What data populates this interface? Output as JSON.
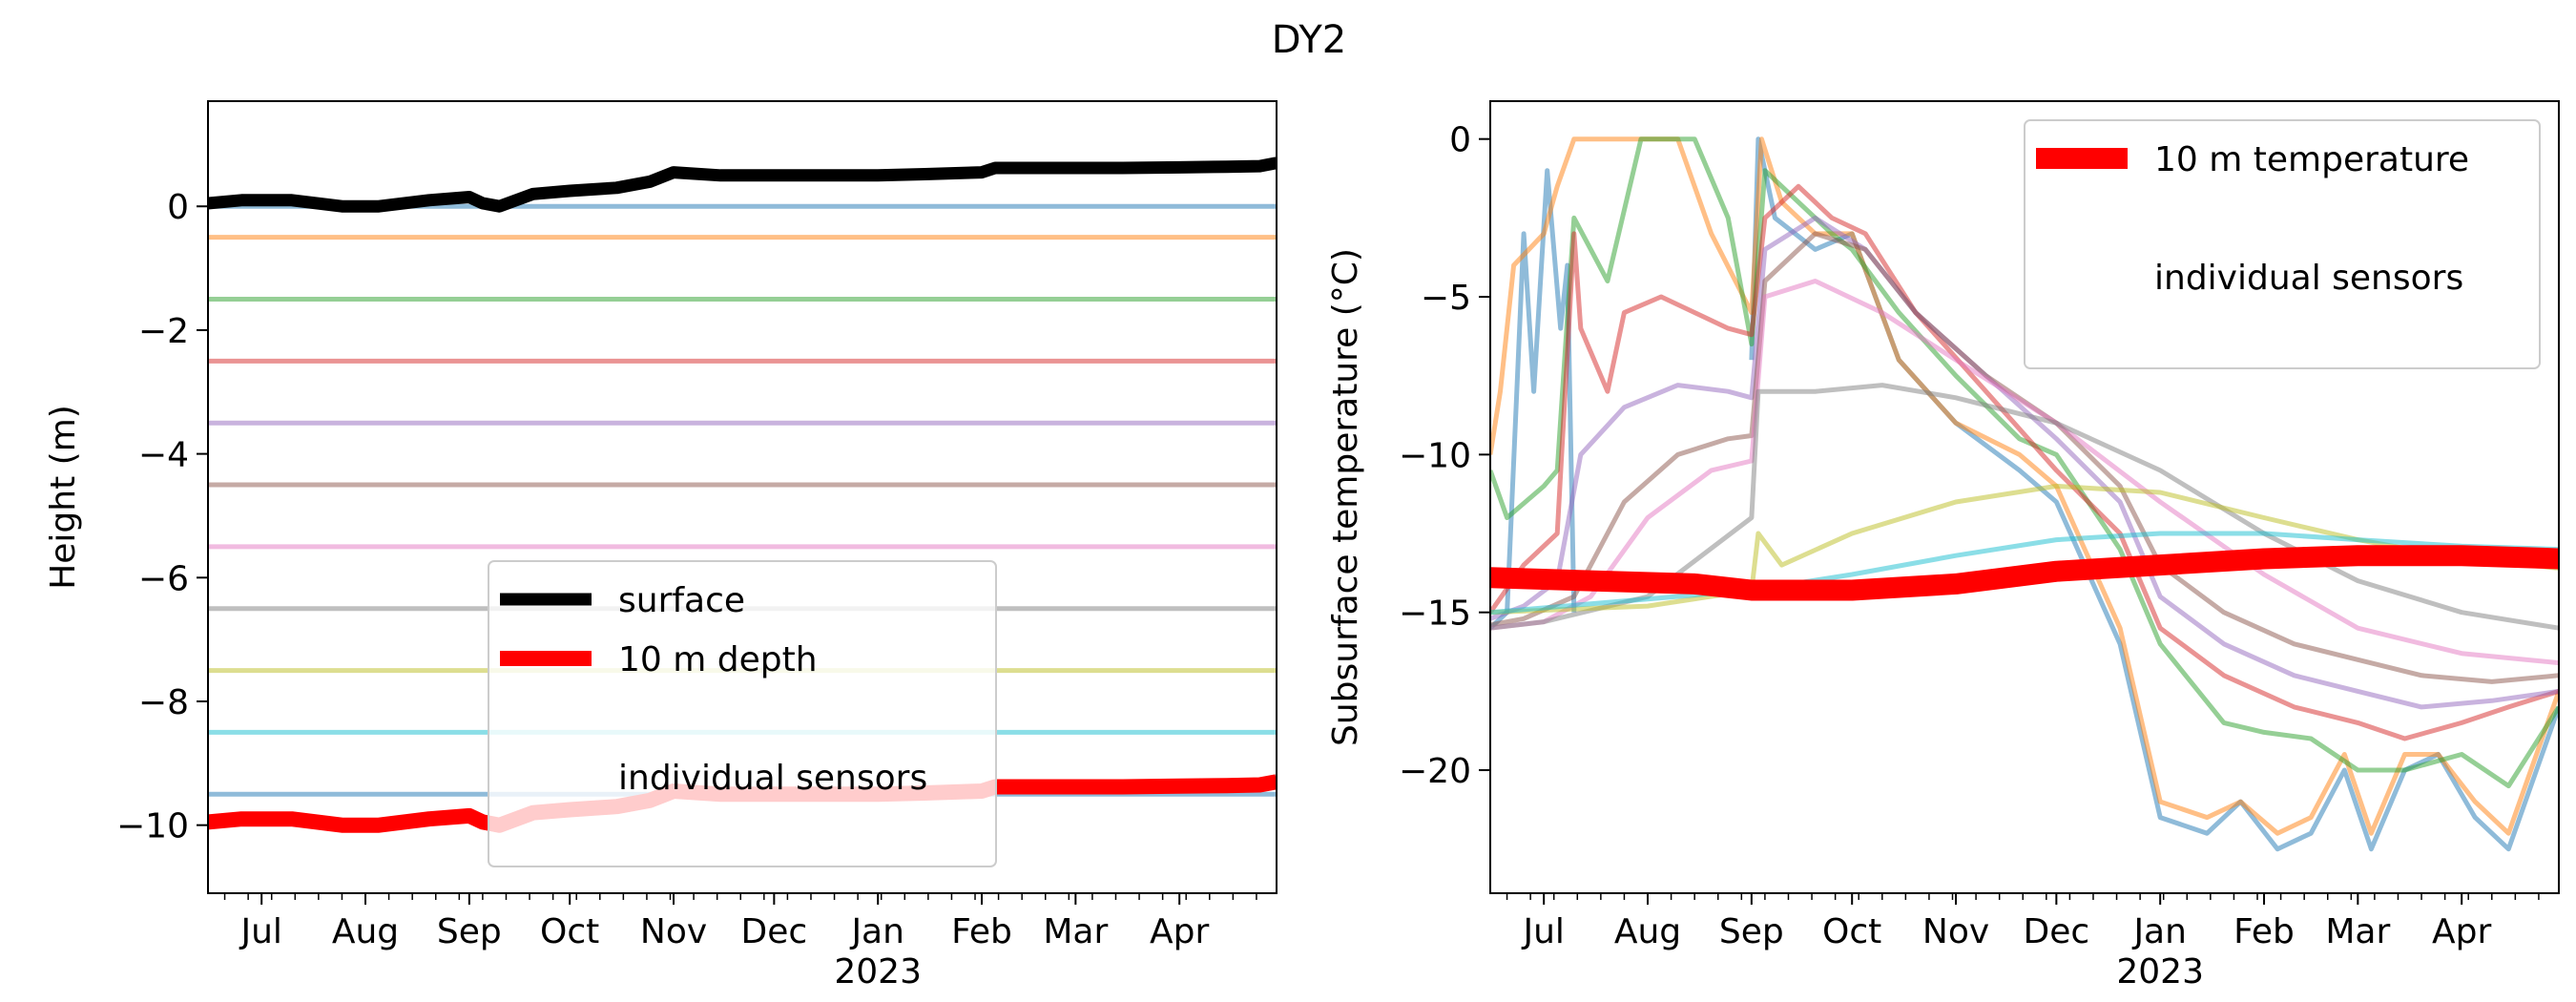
{
  "figure": {
    "title": "DY2"
  },
  "chart_data": [
    {
      "type": "line",
      "title": "",
      "xlabel": "",
      "ylabel": "Height (m)",
      "xlim": [
        "2022-06-15",
        "2023-04-30"
      ],
      "ylim": [
        -11.1,
        1.7
      ],
      "yticks": [
        0,
        -2,
        -4,
        -6,
        -8,
        -10
      ],
      "ytick_labels": [
        "0",
        "−2",
        "−4",
        "−6",
        "−8",
        "−10"
      ],
      "xticks": [
        {
          "date": "2022-07-01",
          "label": "Jul"
        },
        {
          "date": "2022-08-01",
          "label": "Aug"
        },
        {
          "date": "2022-09-01",
          "label": "Sep"
        },
        {
          "date": "2022-10-01",
          "label": "Oct"
        },
        {
          "date": "2022-11-01",
          "label": "Nov"
        },
        {
          "date": "2022-12-01",
          "label": "Dec"
        },
        {
          "date": "2023-01-01",
          "label": "Jan"
        },
        {
          "date": "2023-02-01",
          "label": "Feb"
        },
        {
          "date": "2023-03-01",
          "label": "Mar"
        },
        {
          "date": "2023-04-01",
          "label": "Apr"
        }
      ],
      "year_label": "2023",
      "grid": false,
      "legend": {
        "placement": "lower center",
        "entries": [
          {
            "label": "surface",
            "color": "#000000"
          },
          {
            "label": "10 m depth",
            "color": "#ff0000"
          },
          {
            "label": "individual sensors",
            "color": ""
          }
        ]
      },
      "series": [
        {
          "name": "surface",
          "color": "#000000",
          "x": [
            "2022-06-15",
            "2022-06-25",
            "2022-07-10",
            "2022-07-25",
            "2022-08-05",
            "2022-08-20",
            "2022-09-01",
            "2022-09-05",
            "2022-09-10",
            "2022-09-20",
            "2022-10-01",
            "2022-10-15",
            "2022-10-25",
            "2022-11-01",
            "2022-11-15",
            "2022-12-01",
            "2022-12-15",
            "2023-01-01",
            "2023-01-15",
            "2023-02-01",
            "2023-02-05",
            "2023-02-15",
            "2023-03-01",
            "2023-03-15",
            "2023-04-01",
            "2023-04-15",
            "2023-04-25",
            "2023-04-30"
          ],
          "y": [
            0.05,
            0.1,
            0.1,
            0.0,
            0.0,
            0.1,
            0.15,
            0.05,
            0.0,
            0.2,
            0.25,
            0.3,
            0.4,
            0.55,
            0.5,
            0.5,
            0.5,
            0.5,
            0.52,
            0.55,
            0.62,
            0.62,
            0.62,
            0.62,
            0.63,
            0.64,
            0.65,
            0.7
          ]
        },
        {
          "name": "10 m depth",
          "color": "#ff0000",
          "x": [
            "2022-06-15",
            "2022-06-25",
            "2022-07-10",
            "2022-07-25",
            "2022-08-05",
            "2022-08-20",
            "2022-09-01",
            "2022-09-05",
            "2022-09-10",
            "2022-09-20",
            "2022-10-01",
            "2022-10-15",
            "2022-10-25",
            "2022-11-01",
            "2022-11-15",
            "2022-12-01",
            "2022-12-15",
            "2023-01-01",
            "2023-01-15",
            "2023-02-01",
            "2023-02-05",
            "2023-02-15",
            "2023-03-01",
            "2023-03-15",
            "2023-04-01",
            "2023-04-15",
            "2023-04-25",
            "2023-04-30"
          ],
          "y": [
            -9.95,
            -9.9,
            -9.9,
            -10.0,
            -10.0,
            -9.9,
            -9.85,
            -9.95,
            -10.0,
            -9.8,
            -9.75,
            -9.7,
            -9.6,
            -9.45,
            -9.5,
            -9.5,
            -9.5,
            -9.5,
            -9.48,
            -9.45,
            -9.38,
            -9.38,
            -9.38,
            -9.38,
            -9.37,
            -9.36,
            -9.35,
            -9.3
          ]
        },
        {
          "name": "",
          "color": "#1f77b4",
          "constant": 0.0
        },
        {
          "name": "",
          "color": "#ff7f0e",
          "constant": -0.5
        },
        {
          "name": "",
          "color": "#2ca02c",
          "constant": -1.5
        },
        {
          "name": "",
          "color": "#d62728",
          "constant": -2.5
        },
        {
          "name": "",
          "color": "#9467bd",
          "constant": -3.5
        },
        {
          "name": "",
          "color": "#8c564b",
          "constant": -4.5
        },
        {
          "name": "",
          "color": "#e377c2",
          "constant": -5.5
        },
        {
          "name": "",
          "color": "#7f7f7f",
          "constant": -6.5
        },
        {
          "name": "",
          "color": "#bcbd22",
          "constant": -7.5
        },
        {
          "name": "",
          "color": "#17becf",
          "constant": -8.5
        },
        {
          "name": "",
          "color": "#1f77b4",
          "constant": -9.5
        }
      ]
    },
    {
      "type": "line",
      "title": "",
      "xlabel": "",
      "ylabel": "Subsurface temperature (°C)",
      "xlim": [
        "2022-06-15",
        "2023-04-30"
      ],
      "ylim": [
        -23.9,
        1.2
      ],
      "yticks": [
        0,
        -5,
        -10,
        -15,
        -20
      ],
      "ytick_labels": [
        "0",
        "−5",
        "−10",
        "−15",
        "−20"
      ],
      "xticks": [
        {
          "date": "2022-07-01",
          "label": "Jul"
        },
        {
          "date": "2022-08-01",
          "label": "Aug"
        },
        {
          "date": "2022-09-01",
          "label": "Sep"
        },
        {
          "date": "2022-10-01",
          "label": "Oct"
        },
        {
          "date": "2022-11-01",
          "label": "Nov"
        },
        {
          "date": "2022-12-01",
          "label": "Dec"
        },
        {
          "date": "2023-01-01",
          "label": "Jan"
        },
        {
          "date": "2023-02-01",
          "label": "Feb"
        },
        {
          "date": "2023-03-01",
          "label": "Mar"
        },
        {
          "date": "2023-04-01",
          "label": "Apr"
        }
      ],
      "year_label": "2023",
      "grid": false,
      "legend": {
        "placement": "upper right",
        "entries": [
          {
            "label": "10 m temperature",
            "color": "#ff0000"
          },
          {
            "label": "individual sensors",
            "color": ""
          }
        ]
      },
      "series": [
        {
          "name": "10 m temperature",
          "color": "#ff0000",
          "x": [
            "2022-06-15",
            "2022-07-15",
            "2022-08-15",
            "2022-09-01",
            "2022-10-01",
            "2022-11-01",
            "2022-12-01",
            "2023-01-01",
            "2023-02-01",
            "2023-03-01",
            "2023-04-01",
            "2023-04-30"
          ],
          "y": [
            -13.9,
            -14.0,
            -14.1,
            -14.3,
            -14.3,
            -14.1,
            -13.7,
            -13.5,
            -13.3,
            -13.2,
            -13.2,
            -13.3
          ]
        },
        {
          "name": "",
          "color": "#1f77b4",
          "x": [
            "2022-06-15",
            "2022-06-20",
            "2022-06-25",
            "2022-06-28",
            "2022-07-02",
            "2022-07-06",
            "2022-07-08",
            "2022-07-10",
            "2022-07-20",
            "2022-08-20",
            "2022-09-01",
            "2022-09-03",
            "2022-09-08",
            "2022-09-20",
            "2022-10-01",
            "2022-10-15",
            "2022-11-01",
            "2022-11-20",
            "2022-12-01",
            "2022-12-20",
            "2023-01-01",
            "2023-01-15",
            "2023-01-25",
            "2023-02-05",
            "2023-02-15",
            "2023-02-25",
            "2023-03-05",
            "2023-03-15",
            "2023-03-25",
            "2023-04-05",
            "2023-04-15",
            "2023-04-30"
          ],
          "y": [
            -15.5,
            -15.0,
            -3.0,
            -8.0,
            -1.0,
            -6.0,
            -4.0,
            -15.0,
            null,
            null,
            -7.0,
            0.0,
            -2.5,
            -3.5,
            -3.0,
            -7.0,
            -9.0,
            -10.5,
            -11.5,
            -16.0,
            -21.5,
            -22.0,
            -21.0,
            -22.5,
            -22.0,
            -20.0,
            -22.5,
            -20.0,
            -19.5,
            -21.5,
            -22.5,
            -18.0
          ]
        },
        {
          "name": "",
          "color": "#ff7f0e",
          "x": [
            "2022-06-15",
            "2022-06-18",
            "2022-06-22",
            "2022-07-01",
            "2022-07-05",
            "2022-07-10",
            "2022-07-20",
            "2022-08-10",
            "2022-08-20",
            "2022-09-01",
            "2022-09-04",
            "2022-09-10",
            "2022-09-20",
            "2022-10-01",
            "2022-10-15",
            "2022-11-01",
            "2022-11-20",
            "2022-12-01",
            "2022-12-20",
            "2023-01-01",
            "2023-01-15",
            "2023-01-25",
            "2023-02-05",
            "2023-02-15",
            "2023-02-25",
            "2023-03-05",
            "2023-03-15",
            "2023-03-25",
            "2023-04-05",
            "2023-04-15",
            "2023-04-30"
          ],
          "y": [
            -10.0,
            -8.0,
            -4.0,
            -3.0,
            -1.5,
            0.0,
            0.0,
            0.0,
            -3.0,
            -5.5,
            0.0,
            -2.0,
            -3.0,
            -3.0,
            -7.0,
            -9.0,
            -10.0,
            -11.0,
            -15.5,
            -21.0,
            -21.5,
            -21.0,
            -22.0,
            -21.5,
            -19.5,
            -22.0,
            -19.5,
            -19.5,
            -21.0,
            -22.0,
            -17.5
          ]
        },
        {
          "name": "",
          "color": "#2ca02c",
          "x": [
            "2022-06-15",
            "2022-06-20",
            "2022-07-01",
            "2022-07-05",
            "2022-07-10",
            "2022-07-20",
            "2022-07-30",
            "2022-08-15",
            "2022-08-25",
            "2022-09-01",
            "2022-09-05",
            "2022-09-15",
            "2022-09-25",
            "2022-10-01",
            "2022-10-15",
            "2022-11-01",
            "2022-11-20",
            "2022-12-01",
            "2022-12-20",
            "2023-01-01",
            "2023-01-20",
            "2023-02-01",
            "2023-02-15",
            "2023-03-01",
            "2023-03-15",
            "2023-04-01",
            "2023-04-15",
            "2023-04-30"
          ],
          "y": [
            -10.5,
            -12.0,
            -11.0,
            -10.5,
            -2.5,
            -4.5,
            0.0,
            0.0,
            -2.5,
            -6.5,
            -1.0,
            -2.0,
            -3.0,
            -3.5,
            -5.5,
            -7.5,
            -9.5,
            -10.0,
            -13.0,
            -16.0,
            -18.5,
            -18.8,
            -19.0,
            -20.0,
            -20.0,
            -19.5,
            -20.5,
            -18.0
          ]
        },
        {
          "name": "",
          "color": "#d62728",
          "x": [
            "2022-06-15",
            "2022-06-25",
            "2022-07-05",
            "2022-07-10",
            "2022-07-12",
            "2022-07-20",
            "2022-07-25",
            "2022-08-05",
            "2022-08-25",
            "2022-09-01",
            "2022-09-05",
            "2022-09-15",
            "2022-09-25",
            "2022-10-05",
            "2022-10-20",
            "2022-11-10",
            "2022-12-01",
            "2022-12-20",
            "2023-01-01",
            "2023-01-20",
            "2023-02-10",
            "2023-03-01",
            "2023-03-15",
            "2023-04-01",
            "2023-04-15",
            "2023-04-30"
          ],
          "y": [
            -15.0,
            -13.5,
            -12.5,
            -3.0,
            -6.0,
            -8.0,
            -5.5,
            -5.0,
            -6.0,
            -6.2,
            -2.5,
            -1.5,
            -2.5,
            -3.0,
            -5.5,
            -8.0,
            -10.5,
            -12.5,
            -15.5,
            -17.0,
            -18.0,
            -18.5,
            -19.0,
            -18.5,
            -18.0,
            -17.5
          ]
        },
        {
          "name": "",
          "color": "#9467bd",
          "x": [
            "2022-06-15",
            "2022-06-25",
            "2022-07-05",
            "2022-07-12",
            "2022-07-25",
            "2022-08-10",
            "2022-08-25",
            "2022-09-01",
            "2022-09-05",
            "2022-09-20",
            "2022-10-05",
            "2022-10-20",
            "2022-11-10",
            "2022-12-01",
            "2022-12-20",
            "2023-01-01",
            "2023-01-20",
            "2023-02-10",
            "2023-03-01",
            "2023-03-20",
            "2023-04-10",
            "2023-04-30"
          ],
          "y": [
            -15.2,
            -14.8,
            -14.0,
            -10.0,
            -8.5,
            -7.8,
            -8.0,
            -8.2,
            -3.5,
            -2.5,
            -3.5,
            -5.5,
            -7.5,
            -9.5,
            -11.5,
            -14.5,
            -16.0,
            -17.0,
            -17.5,
            -18.0,
            -17.8,
            -17.5
          ]
        },
        {
          "name": "",
          "color": "#8c564b",
          "x": [
            "2022-06-15",
            "2022-06-25",
            "2022-07-10",
            "2022-07-25",
            "2022-08-10",
            "2022-08-25",
            "2022-09-01",
            "2022-09-05",
            "2022-09-20",
            "2022-10-05",
            "2022-10-20",
            "2022-11-10",
            "2022-12-01",
            "2022-12-20",
            "2023-01-01",
            "2023-01-20",
            "2023-02-10",
            "2023-03-01",
            "2023-03-20",
            "2023-04-10",
            "2023-04-30"
          ],
          "y": [
            -15.4,
            -15.2,
            -14.5,
            -11.5,
            -10.0,
            -9.5,
            -9.4,
            -4.5,
            -3.0,
            -3.5,
            -5.5,
            -7.5,
            -9.0,
            -11.0,
            -13.5,
            -15.0,
            -16.0,
            -16.5,
            -17.0,
            -17.2,
            -17.0
          ]
        },
        {
          "name": "",
          "color": "#e377c2",
          "x": [
            "2022-06-15",
            "2022-07-01",
            "2022-07-15",
            "2022-08-01",
            "2022-08-20",
            "2022-09-01",
            "2022-09-05",
            "2022-09-20",
            "2022-10-10",
            "2022-11-01",
            "2022-12-01",
            "2023-01-01",
            "2023-02-01",
            "2023-03-01",
            "2023-04-01",
            "2023-04-30"
          ],
          "y": [
            -15.5,
            -15.3,
            -14.5,
            -12.0,
            -10.5,
            -10.2,
            -5.0,
            -4.5,
            -5.5,
            -7.0,
            -9.0,
            -11.5,
            -13.8,
            -15.5,
            -16.3,
            -16.6
          ]
        },
        {
          "name": "",
          "color": "#7f7f7f",
          "x": [
            "2022-06-15",
            "2022-07-01",
            "2022-08-01",
            "2022-09-01",
            "2022-09-03",
            "2022-09-20",
            "2022-10-10",
            "2022-11-01",
            "2022-12-01",
            "2023-01-01",
            "2023-02-01",
            "2023-03-01",
            "2023-04-01",
            "2023-04-30"
          ],
          "y": [
            -15.5,
            -15.3,
            -14.5,
            -12.0,
            -8.0,
            -8.0,
            -7.8,
            -8.2,
            -9.0,
            -10.5,
            -12.5,
            -14.0,
            -15.0,
            -15.5
          ]
        },
        {
          "name": "",
          "color": "#bcbd22",
          "x": [
            "2022-06-15",
            "2022-08-01",
            "2022-09-01",
            "2022-09-03",
            "2022-09-10",
            "2022-10-01",
            "2022-11-01",
            "2022-12-01",
            "2023-01-01",
            "2023-02-01",
            "2023-03-01",
            "2023-04-01",
            "2023-04-30"
          ],
          "y": [
            -15.0,
            -14.8,
            -14.3,
            -12.5,
            -13.5,
            -12.5,
            -11.5,
            -11.0,
            -11.2,
            -12.0,
            -12.7,
            -13.3,
            -13.6
          ]
        },
        {
          "name": "",
          "color": "#17becf",
          "x": [
            "2022-06-15",
            "2022-09-01",
            "2022-10-01",
            "2022-11-01",
            "2022-12-01",
            "2023-01-01",
            "2023-02-01",
            "2023-03-01",
            "2023-04-01",
            "2023-04-30"
          ],
          "y": [
            -15.0,
            -14.3,
            -13.8,
            -13.2,
            -12.7,
            -12.5,
            -12.5,
            -12.7,
            -12.9,
            -13.0
          ]
        }
      ]
    }
  ]
}
